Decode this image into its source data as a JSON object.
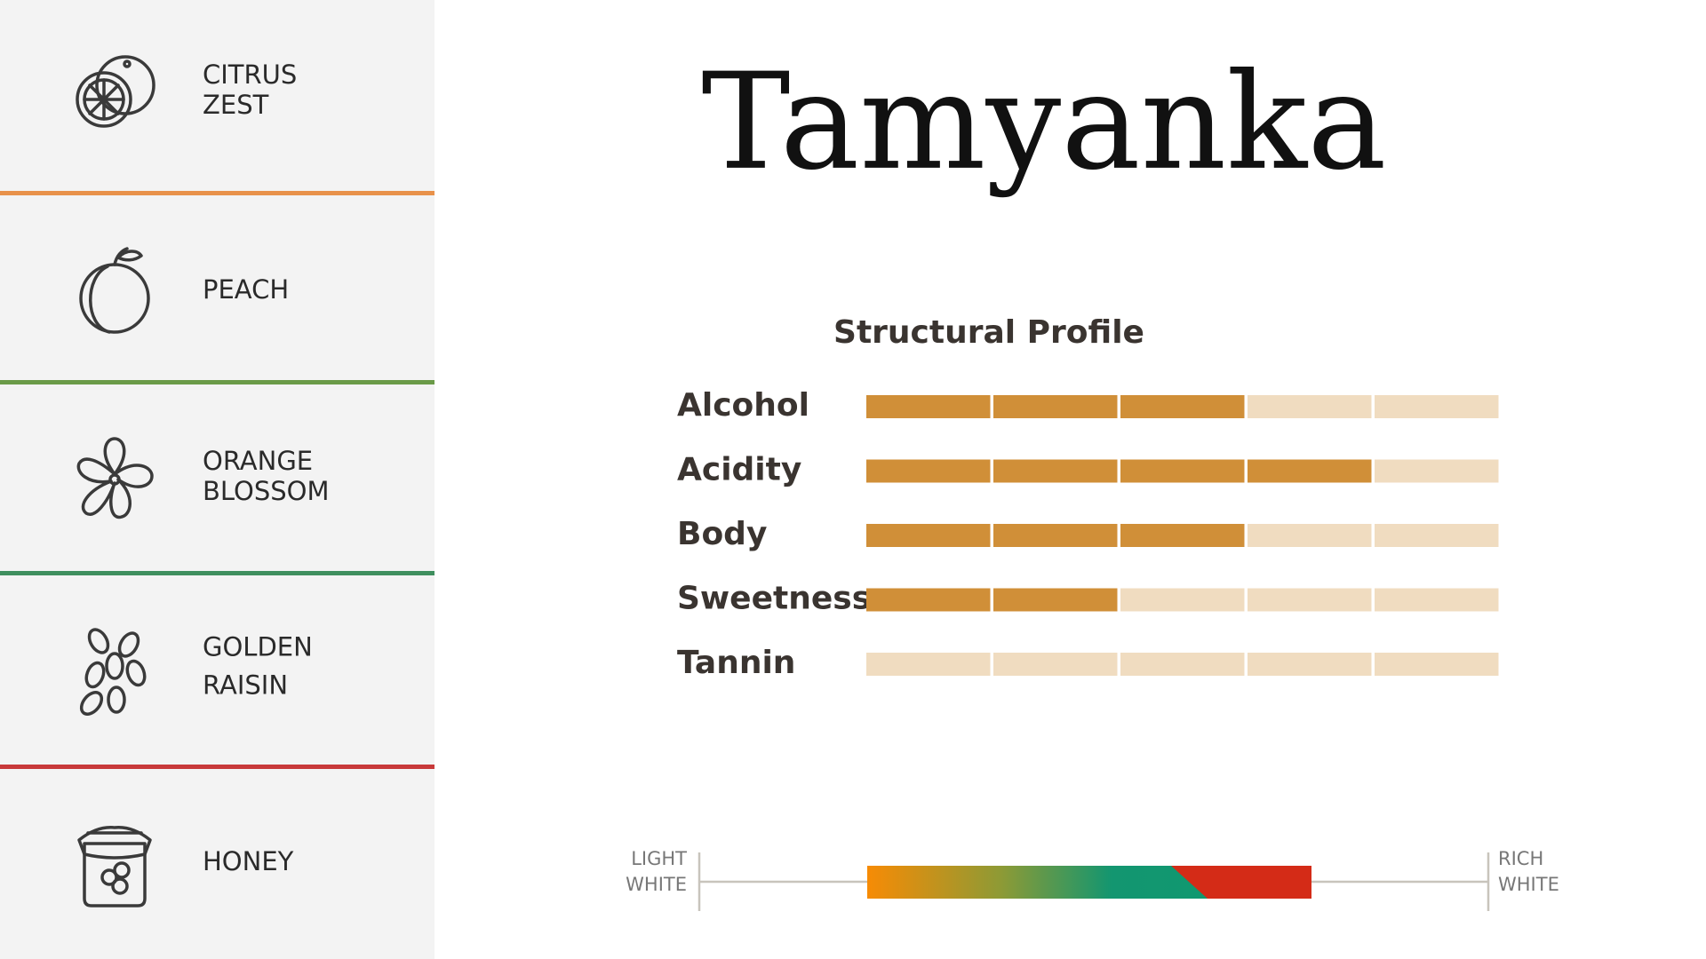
{
  "notes": [
    {
      "lines": [
        "CITRUS",
        "ZEST"
      ]
    },
    {
      "lines": [
        "PEACH"
      ]
    },
    {
      "lines": [
        "ORANGE",
        "BLOSSOM"
      ]
    },
    {
      "lines": [
        "GOLDEN",
        "RAISIN"
      ]
    },
    {
      "lines": [
        "HONEY"
      ]
    }
  ],
  "title": "Tamyanka",
  "chart_data": {
    "type": "segment-bars",
    "title": "Structural Profile",
    "segments": 5,
    "categories": [
      "Alcohol",
      "Acidity",
      "Body",
      "Sweetness",
      "Tannin"
    ],
    "values": [
      3,
      4,
      3,
      2,
      0
    ],
    "color": "#d08f38",
    "empty_color": "#f0dcc0"
  },
  "style_scale": {
    "left": [
      "LIGHT",
      "WHITE"
    ],
    "right": [
      "RICH",
      "WHITE"
    ]
  }
}
